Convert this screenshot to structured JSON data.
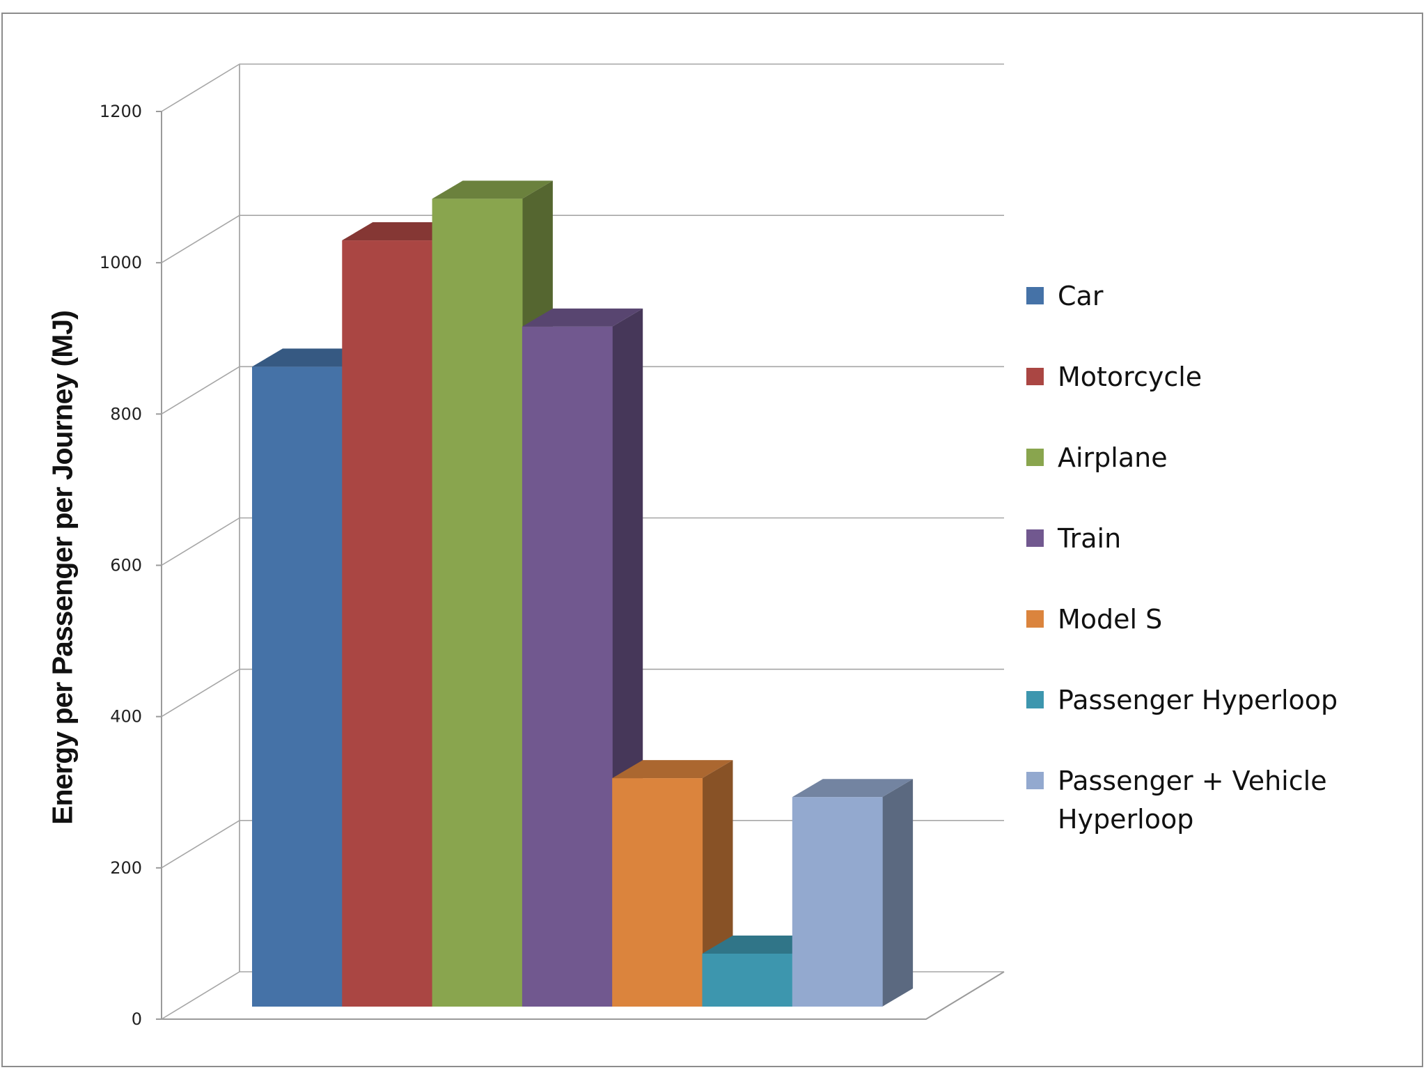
{
  "chart_data": {
    "type": "bar",
    "title": "",
    "xlabel": "",
    "ylabel": "Energy per Passenger per Journey (MJ)",
    "ylim": [
      0,
      1200
    ],
    "yticks": [
      "0",
      "200",
      "400",
      "600",
      "800",
      "1000",
      "1200"
    ],
    "grid": true,
    "legend_position": "right",
    "three_d": true,
    "series": [
      {
        "name": "Car",
        "value": 846,
        "color": "#4572a7"
      },
      {
        "name": "Motorcycle",
        "value": 1013,
        "color": "#aa4643"
      },
      {
        "name": "Airplane",
        "value": 1068,
        "color": "#89a54e"
      },
      {
        "name": "Train",
        "value": 899,
        "color": "#71588f"
      },
      {
        "name": "Model S",
        "value": 302,
        "color": "#db843d"
      },
      {
        "name": "Passenger Hyperloop",
        "value": 70,
        "color": "#3d96ae"
      },
      {
        "name": "Passenger + Vehicle Hyperloop",
        "value": 277,
        "color": "#93a9cf"
      }
    ]
  }
}
